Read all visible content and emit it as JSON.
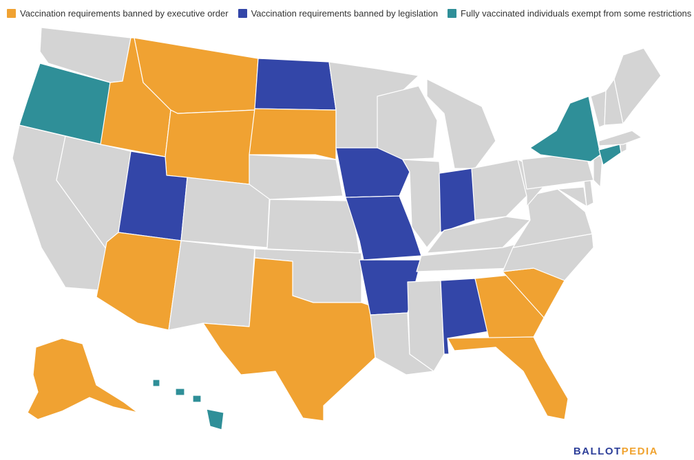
{
  "legend": [
    {
      "label": "Vaccination requirements banned by executive order",
      "color": "#f0a232"
    },
    {
      "label": "Vaccination requirements banned by legislation",
      "color": "#3346a8"
    },
    {
      "label": "Fully vaccinated individuals exempt from some restrictions",
      "color": "#2f8f98"
    }
  ],
  "colors": {
    "executive_order": "#f0a232",
    "legislation": "#3346a8",
    "exempt": "#2f8f98",
    "none": "#d4d4d4",
    "border": "#ffffff"
  },
  "map": {
    "states": [
      {
        "code": "WA",
        "category": "none"
      },
      {
        "code": "OR",
        "category": "exempt"
      },
      {
        "code": "CA",
        "category": "none"
      },
      {
        "code": "NV",
        "category": "none"
      },
      {
        "code": "ID",
        "category": "executive_order"
      },
      {
        "code": "MT",
        "category": "executive_order"
      },
      {
        "code": "WY",
        "category": "executive_order"
      },
      {
        "code": "UT",
        "category": "legislation"
      },
      {
        "code": "AZ",
        "category": "executive_order"
      },
      {
        "code": "CO",
        "category": "none"
      },
      {
        "code": "NM",
        "category": "none"
      },
      {
        "code": "ND",
        "category": "legislation"
      },
      {
        "code": "SD",
        "category": "executive_order"
      },
      {
        "code": "NE",
        "category": "none"
      },
      {
        "code": "KS",
        "category": "none"
      },
      {
        "code": "OK",
        "category": "none"
      },
      {
        "code": "TX",
        "category": "executive_order"
      },
      {
        "code": "MN",
        "category": "none"
      },
      {
        "code": "IA",
        "category": "legislation"
      },
      {
        "code": "MO",
        "category": "legislation"
      },
      {
        "code": "AR",
        "category": "legislation"
      },
      {
        "code": "LA",
        "category": "none"
      },
      {
        "code": "WI",
        "category": "none"
      },
      {
        "code": "IL",
        "category": "none"
      },
      {
        "code": "MI",
        "category": "none"
      },
      {
        "code": "IN",
        "category": "legislation"
      },
      {
        "code": "OH",
        "category": "none"
      },
      {
        "code": "KY",
        "category": "none"
      },
      {
        "code": "TN",
        "category": "none"
      },
      {
        "code": "MS",
        "category": "none"
      },
      {
        "code": "AL",
        "category": "legislation"
      },
      {
        "code": "GA",
        "category": "executive_order"
      },
      {
        "code": "FL",
        "category": "executive_order"
      },
      {
        "code": "SC",
        "category": "executive_order"
      },
      {
        "code": "NC",
        "category": "none"
      },
      {
        "code": "VA",
        "category": "none"
      },
      {
        "code": "WV",
        "category": "none"
      },
      {
        "code": "MD",
        "category": "none"
      },
      {
        "code": "DE",
        "category": "none"
      },
      {
        "code": "PA",
        "category": "none"
      },
      {
        "code": "NJ",
        "category": "none"
      },
      {
        "code": "NY",
        "category": "exempt"
      },
      {
        "code": "CT",
        "category": "exempt"
      },
      {
        "code": "RI",
        "category": "none"
      },
      {
        "code": "MA",
        "category": "none"
      },
      {
        "code": "VT",
        "category": "none"
      },
      {
        "code": "NH",
        "category": "none"
      },
      {
        "code": "ME",
        "category": "none"
      },
      {
        "code": "AK",
        "category": "executive_order"
      },
      {
        "code": "HI",
        "category": "exempt"
      }
    ]
  },
  "logo": {
    "part1": "BALLOT",
    "part2": "PEDIA"
  }
}
